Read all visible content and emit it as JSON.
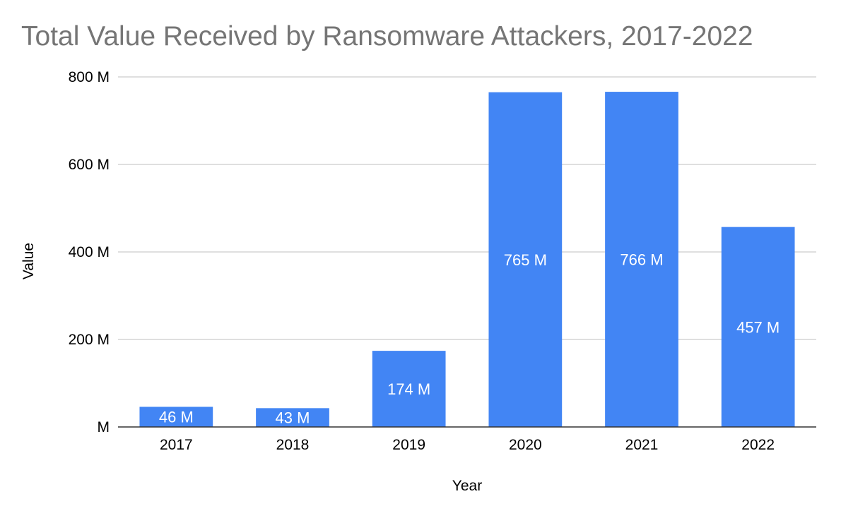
{
  "chart_data": {
    "type": "bar",
    "title": "Total Value Received by Ransomware Attackers, 2017-2022",
    "xlabel": "Year",
    "ylabel": "Value",
    "categories": [
      "2017",
      "2018",
      "2019",
      "2020",
      "2021",
      "2022"
    ],
    "values": [
      46,
      43,
      174,
      765,
      766,
      457
    ],
    "data_labels": [
      "46 M",
      "43 M",
      "174 M",
      "765 M",
      "766 M",
      "457 M"
    ],
    "ylim": [
      0,
      800
    ],
    "yticks": [
      0,
      200,
      400,
      600,
      800
    ],
    "ytick_labels": [
      "M",
      "200 M",
      "400 M",
      "600 M",
      "800 M"
    ],
    "grid": true,
    "legend": "none",
    "bar_color": "#4285f4"
  }
}
